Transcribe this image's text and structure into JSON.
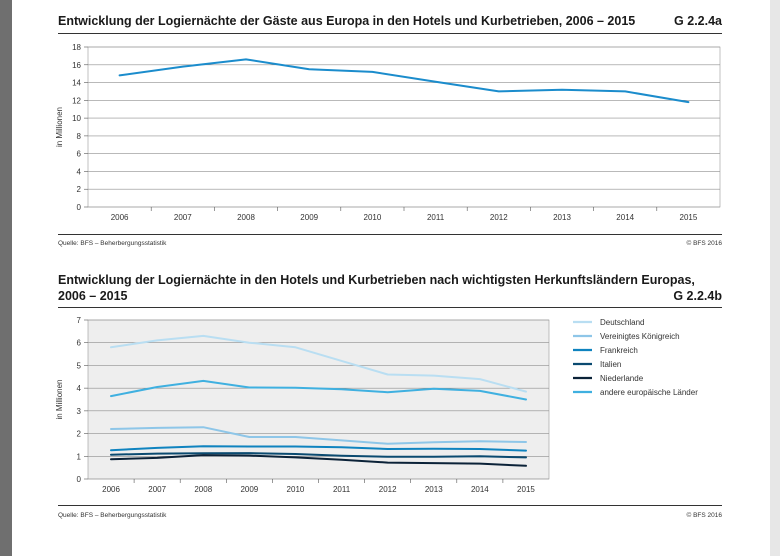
{
  "chart_a": {
    "title": "Entwicklung der Logiernächte der Gäste aus Europa in den Hotels und Kurbetrieben, 2006 – 2015",
    "code": "G 2.2.4a",
    "source": "Quelle: BFS – Beherbergungsstatistik",
    "copyright": "© BFS 2016"
  },
  "chart_b": {
    "title_line1": "Entwicklung der Logiernächte in den Hotels und Kurbetrieben nach wichtigsten Herkunftsländern Europas,",
    "title_line2": "2006 – 2015",
    "code": "G 2.2.4b",
    "source": "Quelle: BFS – Beherbergungsstatistik",
    "copyright": "© BFS 2016"
  },
  "chart_data": [
    {
      "type": "line",
      "title": "Entwicklung der Logiernächte der Gäste aus Europa in den Hotels und Kurbetrieben, 2006 – 2015",
      "xlabel": "",
      "ylabel": "in Millionen",
      "ylim": [
        0,
        18
      ],
      "yticks": [
        0,
        2,
        4,
        6,
        8,
        10,
        12,
        14,
        16,
        18
      ],
      "grid": true,
      "x": [
        "2006",
        "2007",
        "2008",
        "2009",
        "2010",
        "2011",
        "2012",
        "2013",
        "2014",
        "2015"
      ],
      "series": [
        {
          "values": [
            14.8,
            15.8,
            16.6,
            15.5,
            15.2,
            14.1,
            13.0,
            13.2,
            13.0,
            11.8
          ],
          "color": "#1b8ccc"
        }
      ]
    },
    {
      "type": "line",
      "title": "Entwicklung der Logiernächte in den Hotels und Kurbetrieben nach wichtigsten Herkunftsländern Europas, 2006 – 2015",
      "xlabel": "",
      "ylabel": "in Millionen",
      "ylim": [
        0,
        7
      ],
      "yticks": [
        0,
        1,
        2,
        3,
        4,
        5,
        6,
        7
      ],
      "grid": true,
      "legend_position": "right",
      "x": [
        "2006",
        "2007",
        "2008",
        "2009",
        "2010",
        "2011",
        "2012",
        "2013",
        "2014",
        "2015"
      ],
      "series": [
        {
          "name": "Deutschland",
          "values": [
            5.8,
            6.1,
            6.3,
            6.0,
            5.8,
            5.2,
            4.6,
            4.55,
            4.4,
            3.85
          ],
          "color": "#b9def2"
        },
        {
          "name": "Vereinigtes Königreich",
          "values": [
            2.2,
            2.25,
            2.28,
            1.85,
            1.85,
            1.7,
            1.55,
            1.62,
            1.66,
            1.63
          ],
          "color": "#8ec6e8"
        },
        {
          "name": "Frankreich",
          "values": [
            1.27,
            1.37,
            1.44,
            1.43,
            1.43,
            1.4,
            1.32,
            1.33,
            1.32,
            1.25
          ],
          "color": "#0f83bf"
        },
        {
          "name": "Italien",
          "values": [
            1.07,
            1.12,
            1.13,
            1.14,
            1.1,
            1.02,
            0.98,
            0.98,
            1.0,
            0.95
          ],
          "color": "#0a4a70"
        },
        {
          "name": "Niederlande",
          "values": [
            0.87,
            0.93,
            1.05,
            1.03,
            0.95,
            0.85,
            0.72,
            0.7,
            0.68,
            0.58
          ],
          "color": "#0b2238"
        },
        {
          "name": "andere europäische Länder",
          "values": [
            3.65,
            4.05,
            4.32,
            4.03,
            4.02,
            3.95,
            3.82,
            3.97,
            3.88,
            3.5
          ],
          "color": "#3fb0e0"
        }
      ]
    }
  ]
}
